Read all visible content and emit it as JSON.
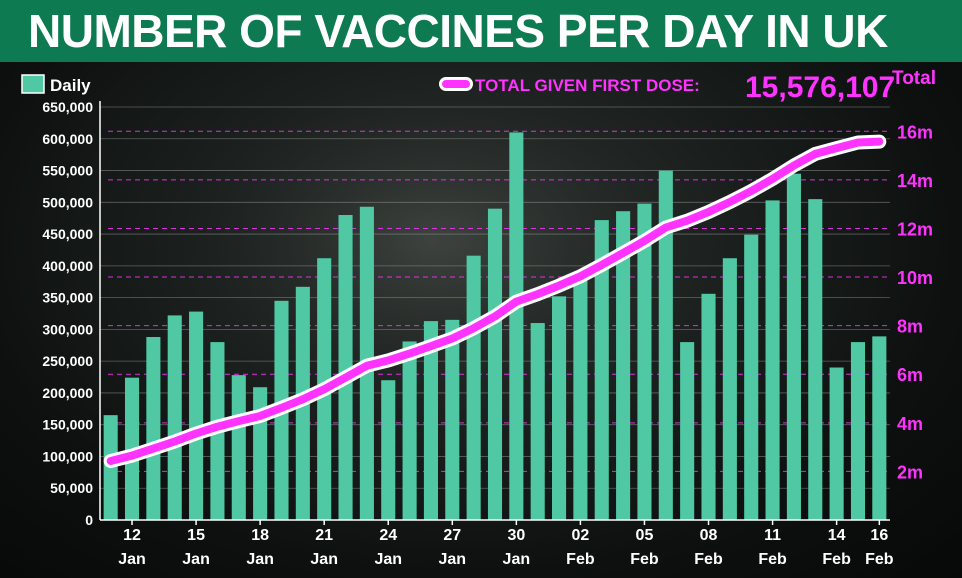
{
  "title": "NUMBER OF VACCINES PER DAY IN UK",
  "legend": {
    "daily_label": "Daily",
    "total_label": "TOTAL GIVEN FIRST DOSE:",
    "total_value": "15,576,107",
    "right_axis_title": "Total"
  },
  "colors": {
    "title_bar": "#0e7a52",
    "bars": "#50c8a3",
    "line": "#ff33ff",
    "line_casing": "#ffffff",
    "right_axis": "#ff33ff",
    "left_axis": "#ffffff"
  },
  "chart_data": {
    "type": "bar",
    "categories": [
      "11 Jan",
      "12 Jan",
      "13 Jan",
      "14 Jan",
      "15 Jan",
      "16 Jan",
      "17 Jan",
      "18 Jan",
      "19 Jan",
      "20 Jan",
      "21 Jan",
      "22 Jan",
      "23 Jan",
      "24 Jan",
      "25 Jan",
      "26 Jan",
      "27 Jan",
      "28 Jan",
      "29 Jan",
      "30 Jan",
      "31 Jan",
      "01 Feb",
      "02 Feb",
      "03 Feb",
      "04 Feb",
      "05 Feb",
      "06 Feb",
      "07 Feb",
      "08 Feb",
      "09 Feb",
      "10 Feb",
      "11 Feb",
      "12 Feb",
      "13 Feb",
      "14 Feb",
      "15 Feb",
      "16 Feb"
    ],
    "x_tick_labels": [
      {
        "day": "12",
        "month": "Jan",
        "index": 1
      },
      {
        "day": "15",
        "month": "Jan",
        "index": 4
      },
      {
        "day": "18",
        "month": "Jan",
        "index": 7
      },
      {
        "day": "21",
        "month": "Jan",
        "index": 10
      },
      {
        "day": "24",
        "month": "Jan",
        "index": 13
      },
      {
        "day": "27",
        "month": "Jan",
        "index": 16
      },
      {
        "day": "30",
        "month": "Jan",
        "index": 19
      },
      {
        "day": "02",
        "month": "Feb",
        "index": 22
      },
      {
        "day": "05",
        "month": "Feb",
        "index": 25
      },
      {
        "day": "08",
        "month": "Feb",
        "index": 28
      },
      {
        "day": "11",
        "month": "Feb",
        "index": 31
      },
      {
        "day": "14",
        "month": "Feb",
        "index": 34
      },
      {
        "day": "16",
        "month": "Feb",
        "index": 36
      }
    ],
    "series": [
      {
        "name": "Daily",
        "axis": "left",
        "values": [
          165000,
          224000,
          288000,
          322000,
          328000,
          280000,
          228000,
          209000,
          345000,
          367000,
          412000,
          480000,
          493000,
          220000,
          281000,
          313000,
          315000,
          416000,
          490000,
          610000,
          310000,
          352000,
          377000,
          472000,
          486000,
          498000,
          550000,
          280000,
          356000,
          412000,
          449000,
          503000,
          545000,
          505000,
          240000,
          280000,
          289000
        ]
      },
      {
        "name": "TOTAL GIVEN FIRST DOSE",
        "axis": "right",
        "type": "line",
        "values": [
          2430000,
          2650000,
          2940000,
          3230000,
          3560000,
          3840000,
          4070000,
          4280000,
          4620000,
          4970000,
          5380000,
          5860000,
          6350000,
          6570000,
          6850000,
          7160000,
          7470000,
          7890000,
          8380000,
          8990000,
          9300000,
          9650000,
          10030000,
          10500000,
          10990000,
          11490000,
          12040000,
          12320000,
          12680000,
          13090000,
          13540000,
          14040000,
          14590000,
          15070000,
          15310000,
          15540000,
          15576107
        ]
      }
    ],
    "ylim_left": [
      0,
      650000
    ],
    "ylim_right": [
      0,
      17000000
    ],
    "left_ticks": [
      0,
      50000,
      100000,
      150000,
      200000,
      250000,
      300000,
      350000,
      400000,
      450000,
      500000,
      550000,
      600000,
      650000
    ],
    "left_tick_labels": [
      "0",
      "50,000",
      "100,000",
      "150,000",
      "200,000",
      "250,000",
      "300,000",
      "350,000",
      "400,000",
      "450,000",
      "500,000",
      "550,000",
      "600,000",
      "650,000"
    ],
    "right_ticks": [
      2000000,
      4000000,
      6000000,
      8000000,
      10000000,
      12000000,
      14000000,
      16000000
    ],
    "right_tick_labels": [
      "2m",
      "4m",
      "6m",
      "8m",
      "10m",
      "12m",
      "14m",
      "16m"
    ],
    "grid": true
  }
}
